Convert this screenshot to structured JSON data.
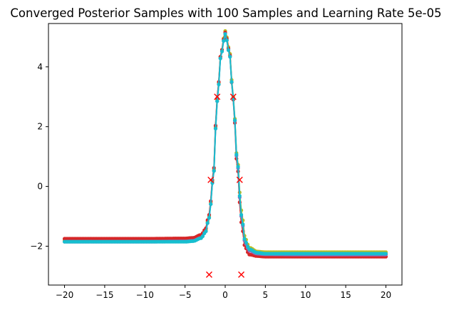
{
  "chart_data": {
    "type": "line",
    "title": "Converged Posterior Samples with 100 Samples and Learning Rate 5e-05",
    "xlabel": "",
    "ylabel": "",
    "xlim": [
      -22,
      22
    ],
    "ylim": [
      -3.3,
      5.45
    ],
    "grid": false,
    "legend": "none",
    "x_ticks": [
      -20,
      -15,
      -10,
      -5,
      0,
      5,
      10,
      15,
      20
    ],
    "x_tick_labels": [
      "−20",
      "−15",
      "−10",
      "−5",
      "0",
      "5",
      "10",
      "15",
      "20"
    ],
    "y_ticks": [
      -2,
      0,
      2,
      4
    ],
    "y_tick_labels": [
      "−2",
      "0",
      "2",
      "4"
    ],
    "curve_x": [
      -20,
      -15,
      -10,
      -5,
      -4,
      -3,
      -2.5,
      -2,
      -1.5,
      -1,
      -0.5,
      0,
      0.5,
      1,
      1.5,
      2,
      2.5,
      3,
      4,
      5,
      10,
      15,
      20
    ],
    "series": [
      {
        "color": "#bcbd22",
        "values": [
          -1.8,
          -1.8,
          -1.8,
          -1.8,
          -1.78,
          -1.68,
          -1.5,
          -1.0,
          0.3,
          2.9,
          4.5,
          5.2,
          4.6,
          3.0,
          0.9,
          -0.8,
          -1.75,
          -2.05,
          -2.18,
          -2.2,
          -2.2,
          -2.2,
          -2.2
        ]
      },
      {
        "color": "#d62728",
        "values": [
          -1.75,
          -1.75,
          -1.75,
          -1.74,
          -1.72,
          -1.62,
          -1.45,
          -0.95,
          0.35,
          2.95,
          4.5,
          5.15,
          4.55,
          2.9,
          0.7,
          -1.2,
          -2.05,
          -2.28,
          -2.33,
          -2.35,
          -2.35,
          -2.35,
          -2.35
        ]
      },
      {
        "color": "#9467bd",
        "values": [
          -1.85,
          -1.85,
          -1.85,
          -1.84,
          -1.82,
          -1.72,
          -1.55,
          -1.05,
          0.25,
          2.85,
          4.45,
          5.1,
          4.5,
          2.95,
          0.8,
          -1.0,
          -1.9,
          -2.15,
          -2.25,
          -2.27,
          -2.28,
          -2.28,
          -2.28
        ]
      },
      {
        "color": "#17becf",
        "values": [
          -1.85,
          -1.85,
          -1.85,
          -1.85,
          -1.83,
          -1.73,
          -1.55,
          -1.05,
          0.25,
          2.85,
          4.45,
          5.1,
          4.5,
          2.95,
          0.85,
          -0.95,
          -1.85,
          -2.1,
          -2.22,
          -2.25,
          -2.25,
          -2.25,
          -2.25
        ]
      }
    ],
    "observations": {
      "marker": "x",
      "color": "#ff0000",
      "points": [
        {
          "x": -2,
          "y": -2.95
        },
        {
          "x": -1.8,
          "y": 0.22
        },
        {
          "x": -1,
          "y": 3.0
        },
        {
          "x": 1,
          "y": 3.0
        },
        {
          "x": 1.8,
          "y": 0.22
        },
        {
          "x": 2,
          "y": -2.95
        }
      ]
    }
  }
}
